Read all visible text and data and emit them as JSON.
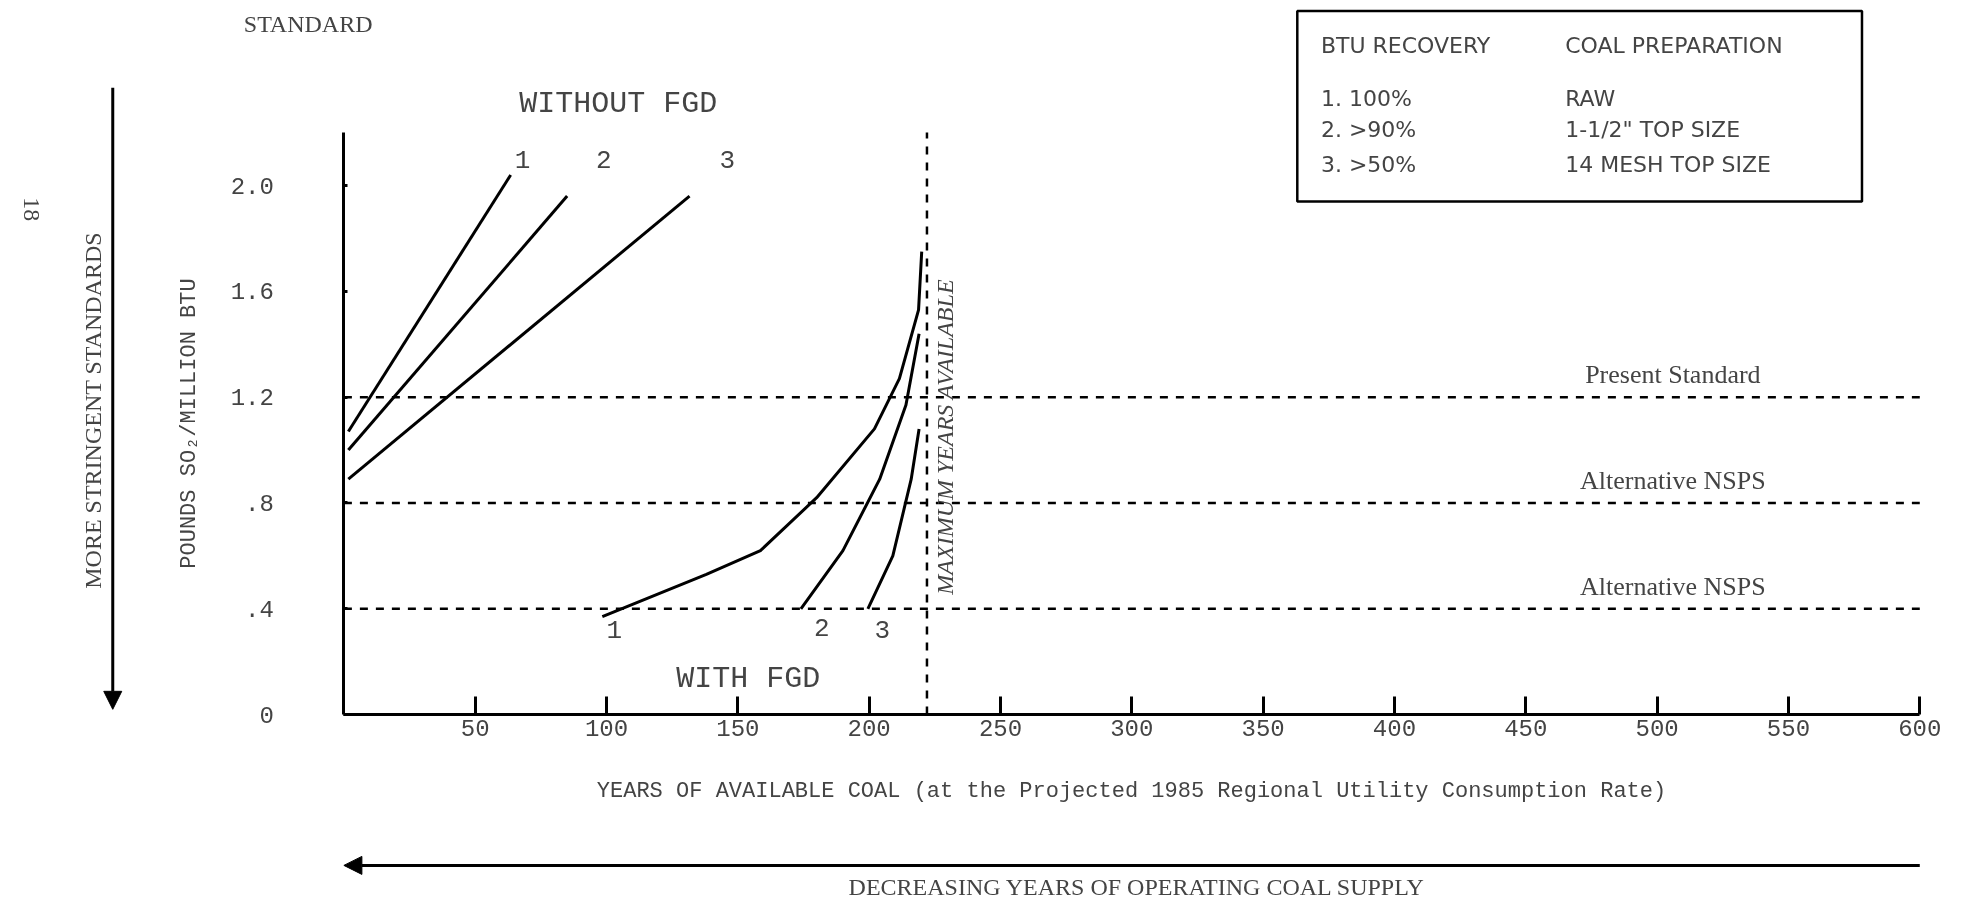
{
  "chart_data": {
    "type": "line",
    "xlabel": "YEARS OF AVAILABLE COAL (at the Projected 1985 Regional Utility Consumption Rate)",
    "ylabel": "POUNDS SO₂/MILLION BTU",
    "series": [
      {
        "color": "#000000",
        "x": [
          1.7,
          63.5
        ],
        "values": [
          1.07,
          2.04
        ]
      },
      {
        "color": "#000000",
        "x": [
          1.7,
          85
        ],
        "values": [
          1.0,
          1.96
        ]
      },
      {
        "color": "#000000",
        "x": [
          1.7,
          131.6
        ],
        "values": [
          0.89,
          1.96
        ]
      },
      {
        "color": "#000000",
        "x": [
          98.4,
          138,
          158.6,
          180,
          202,
          211.5,
          218.8,
          220
        ],
        "values": [
          0.37,
          0.53,
          0.62,
          0.82,
          1.08,
          1.27,
          1.53,
          1.75
        ]
      },
      {
        "color": "#000000",
        "x": [
          174,
          190,
          204,
          214,
          219
        ],
        "values": [
          0.4,
          0.62,
          0.89,
          1.17,
          1.44
        ]
      },
      {
        "color": "#000000",
        "x": [
          199.5,
          209,
          216,
          219
        ],
        "values": [
          0.4,
          0.6,
          0.89,
          1.08
        ]
      }
    ],
    "xlim": [
      0,
      600
    ],
    "ylim": [
      0,
      2.2
    ],
    "xticks": [
      50,
      100,
      150,
      200,
      250,
      300,
      350,
      400,
      450,
      500,
      550,
      600
    ],
    "yticks": [
      {
        "value": 0,
        "label": "0"
      },
      {
        "value": 0.4,
        "label": ".4"
      },
      {
        "value": 0.8,
        "label": ".8"
      },
      1.2,
      1.6,
      {
        "value": 2.0,
        "label": "2.0"
      }
    ],
    "ref_lines": [
      {
        "axis": "y",
        "value": 1.2,
        "label": "Present Standard",
        "line_style": "dashed",
        "color": "#000000"
      },
      {
        "axis": "y",
        "value": 0.8,
        "label": "Alternative NSPS",
        "line_style": "dashed",
        "color": "#000000"
      },
      {
        "axis": "y",
        "value": 0.4,
        "label": "Alternative NSPS",
        "line_style": "dashed",
        "color": "#000000"
      },
      {
        "axis": "x",
        "value": 222,
        "label": "MAXIMUM YEARS AVAILABLE",
        "line_style": "dashed",
        "color": "#000000"
      }
    ],
    "annotations": [
      "STANDARD",
      "WITHOUT FGD",
      "WITH FGD",
      "MORE STRINGENT STANDARDS",
      "DECREASING YEARS OF OPERATING COAL SUPPLY",
      "BTU RECOVERY",
      "COAL PREPARATION",
      "1. 100%",
      "RAW",
      "2. >90%",
      "1-1/2\" TOP SIZE",
      "3. >50%",
      "14 MESH TOP SIZE",
      "18",
      "1",
      "2",
      "3",
      "1",
      "2",
      "3"
    ],
    "grid": false,
    "line_style": "solid",
    "marker": "none"
  }
}
